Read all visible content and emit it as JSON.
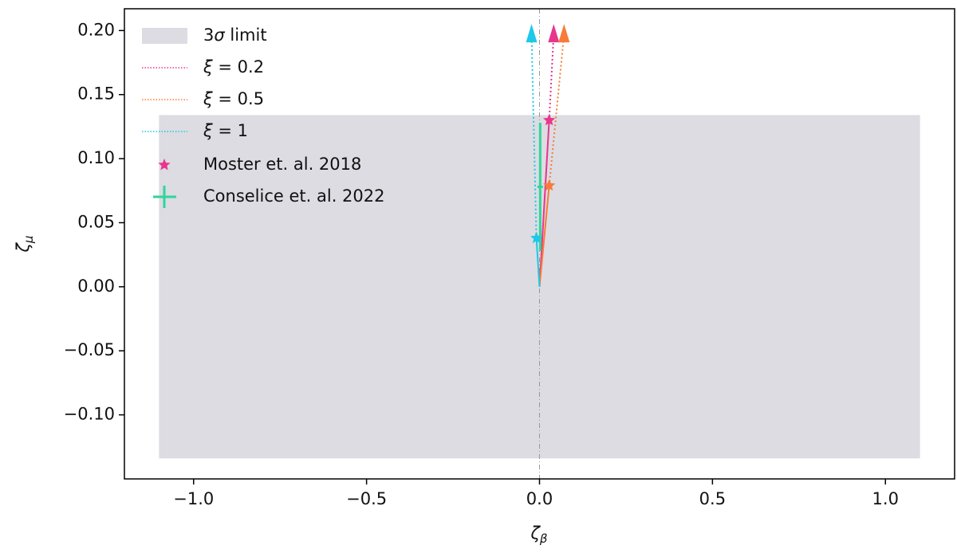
{
  "chart_data": {
    "type": "vector-scatter",
    "xlabel": [
      "ζ",
      "β"
    ],
    "ylabel": [
      "ζ",
      "μ"
    ],
    "xlim": [
      -1.2,
      1.2
    ],
    "ylim": [
      -0.15,
      0.217
    ],
    "xticks": [
      {
        "value": -1.0,
        "label": "−1.0"
      },
      {
        "value": -0.5,
        "label": "−0.5"
      },
      {
        "value": 0.0,
        "label": "0.0"
      },
      {
        "value": 0.5,
        "label": "0.5"
      },
      {
        "value": 1.0,
        "label": "1.0"
      }
    ],
    "yticks": [
      {
        "value": -0.1,
        "label": "−0.10"
      },
      {
        "value": -0.05,
        "label": "−0.05"
      },
      {
        "value": 0.0,
        "label": "0.00"
      },
      {
        "value": 0.05,
        "label": "0.05"
      },
      {
        "value": 0.1,
        "label": "0.10"
      },
      {
        "value": 0.15,
        "label": "0.15"
      },
      {
        "value": 0.2,
        "label": "0.20"
      }
    ],
    "reference_line_x": 0,
    "band": {
      "name": [
        "3",
        "σ",
        " limit"
      ],
      "color": "#dcdce2",
      "xlim": [
        -1.1,
        1.1
      ],
      "ylim": [
        -0.134,
        0.134
      ]
    },
    "series": [
      {
        "name": [
          "ξ",
          " = 0.2"
        ],
        "color": "#e8368c",
        "x": [
          0,
          0.028,
          0.041
        ],
        "y": [
          0,
          0.13,
          0.197
        ]
      },
      {
        "name": [
          "ξ",
          " = 0.5"
        ],
        "color": "#f77b3a",
        "x": [
          0,
          0.028,
          0.071
        ],
        "y": [
          0,
          0.079,
          0.197
        ]
      },
      {
        "name": [
          "ξ",
          " = 1"
        ],
        "color": "#1ec8e8",
        "x": [
          0,
          -0.009,
          -0.023
        ],
        "y": [
          0,
          0.038,
          0.197
        ]
      }
    ],
    "points": {
      "name": "Moster et. al. 2018",
      "legend_color": "#e8368c",
      "colors": [
        "#e8368c",
        "#f77b3a",
        "#1ec8e8"
      ],
      "x": [
        0.028,
        0.028,
        -0.009
      ],
      "y": [
        0.13,
        0.079,
        0.038
      ]
    },
    "errorbar": {
      "name": "Conselice et. al. 2022",
      "color": "#2ed69a",
      "x": 0.002,
      "y": 0.078,
      "xerr": 0.008,
      "yerr": 0.05
    }
  }
}
